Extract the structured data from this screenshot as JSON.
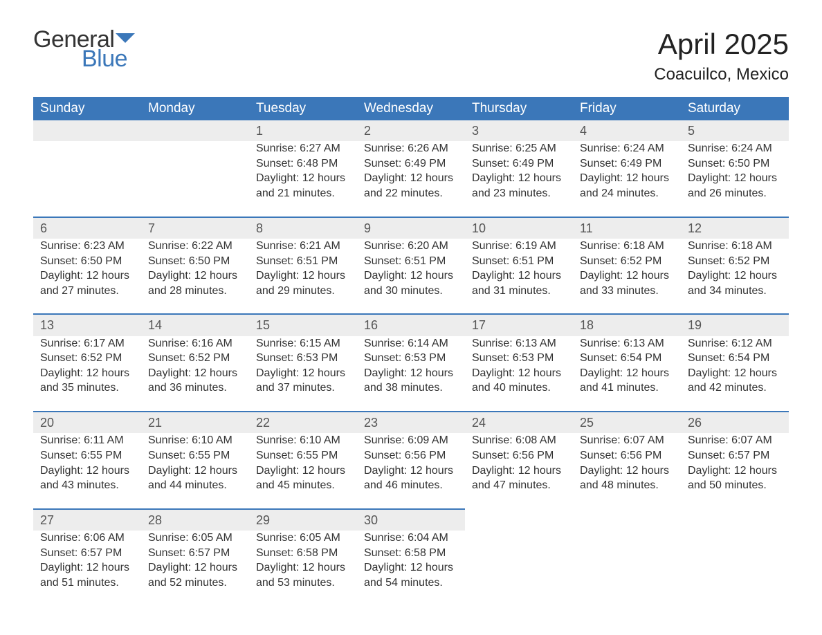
{
  "brand": {
    "word1": "General",
    "word2": "Blue",
    "text_color_1": "#333333",
    "text_color_2": "#3b77b9",
    "flag_color": "#3b77b9"
  },
  "title": {
    "month": "April 2025",
    "location": "Coacuilco, Mexico"
  },
  "colors": {
    "header_bg": "#3b77b9",
    "header_text": "#ffffff",
    "daynum_bg": "#ededed",
    "daynum_border": "#3b77b9",
    "body_bg": "#ffffff",
    "text": "#333333"
  },
  "day_headers": [
    "Sunday",
    "Monday",
    "Tuesday",
    "Wednesday",
    "Thursday",
    "Friday",
    "Saturday"
  ],
  "weeks": [
    [
      null,
      null,
      {
        "n": "1",
        "sunrise": "Sunrise: 6:27 AM",
        "sunset": "Sunset: 6:48 PM",
        "daylight1": "Daylight: 12 hours",
        "daylight2": "and 21 minutes."
      },
      {
        "n": "2",
        "sunrise": "Sunrise: 6:26 AM",
        "sunset": "Sunset: 6:49 PM",
        "daylight1": "Daylight: 12 hours",
        "daylight2": "and 22 minutes."
      },
      {
        "n": "3",
        "sunrise": "Sunrise: 6:25 AM",
        "sunset": "Sunset: 6:49 PM",
        "daylight1": "Daylight: 12 hours",
        "daylight2": "and 23 minutes."
      },
      {
        "n": "4",
        "sunrise": "Sunrise: 6:24 AM",
        "sunset": "Sunset: 6:49 PM",
        "daylight1": "Daylight: 12 hours",
        "daylight2": "and 24 minutes."
      },
      {
        "n": "5",
        "sunrise": "Sunrise: 6:24 AM",
        "sunset": "Sunset: 6:50 PM",
        "daylight1": "Daylight: 12 hours",
        "daylight2": "and 26 minutes."
      }
    ],
    [
      {
        "n": "6",
        "sunrise": "Sunrise: 6:23 AM",
        "sunset": "Sunset: 6:50 PM",
        "daylight1": "Daylight: 12 hours",
        "daylight2": "and 27 minutes."
      },
      {
        "n": "7",
        "sunrise": "Sunrise: 6:22 AM",
        "sunset": "Sunset: 6:50 PM",
        "daylight1": "Daylight: 12 hours",
        "daylight2": "and 28 minutes."
      },
      {
        "n": "8",
        "sunrise": "Sunrise: 6:21 AM",
        "sunset": "Sunset: 6:51 PM",
        "daylight1": "Daylight: 12 hours",
        "daylight2": "and 29 minutes."
      },
      {
        "n": "9",
        "sunrise": "Sunrise: 6:20 AM",
        "sunset": "Sunset: 6:51 PM",
        "daylight1": "Daylight: 12 hours",
        "daylight2": "and 30 minutes."
      },
      {
        "n": "10",
        "sunrise": "Sunrise: 6:19 AM",
        "sunset": "Sunset: 6:51 PM",
        "daylight1": "Daylight: 12 hours",
        "daylight2": "and 31 minutes."
      },
      {
        "n": "11",
        "sunrise": "Sunrise: 6:18 AM",
        "sunset": "Sunset: 6:52 PM",
        "daylight1": "Daylight: 12 hours",
        "daylight2": "and 33 minutes."
      },
      {
        "n": "12",
        "sunrise": "Sunrise: 6:18 AM",
        "sunset": "Sunset: 6:52 PM",
        "daylight1": "Daylight: 12 hours",
        "daylight2": "and 34 minutes."
      }
    ],
    [
      {
        "n": "13",
        "sunrise": "Sunrise: 6:17 AM",
        "sunset": "Sunset: 6:52 PM",
        "daylight1": "Daylight: 12 hours",
        "daylight2": "and 35 minutes."
      },
      {
        "n": "14",
        "sunrise": "Sunrise: 6:16 AM",
        "sunset": "Sunset: 6:52 PM",
        "daylight1": "Daylight: 12 hours",
        "daylight2": "and 36 minutes."
      },
      {
        "n": "15",
        "sunrise": "Sunrise: 6:15 AM",
        "sunset": "Sunset: 6:53 PM",
        "daylight1": "Daylight: 12 hours",
        "daylight2": "and 37 minutes."
      },
      {
        "n": "16",
        "sunrise": "Sunrise: 6:14 AM",
        "sunset": "Sunset: 6:53 PM",
        "daylight1": "Daylight: 12 hours",
        "daylight2": "and 38 minutes."
      },
      {
        "n": "17",
        "sunrise": "Sunrise: 6:13 AM",
        "sunset": "Sunset: 6:53 PM",
        "daylight1": "Daylight: 12 hours",
        "daylight2": "and 40 minutes."
      },
      {
        "n": "18",
        "sunrise": "Sunrise: 6:13 AM",
        "sunset": "Sunset: 6:54 PM",
        "daylight1": "Daylight: 12 hours",
        "daylight2": "and 41 minutes."
      },
      {
        "n": "19",
        "sunrise": "Sunrise: 6:12 AM",
        "sunset": "Sunset: 6:54 PM",
        "daylight1": "Daylight: 12 hours",
        "daylight2": "and 42 minutes."
      }
    ],
    [
      {
        "n": "20",
        "sunrise": "Sunrise: 6:11 AM",
        "sunset": "Sunset: 6:55 PM",
        "daylight1": "Daylight: 12 hours",
        "daylight2": "and 43 minutes."
      },
      {
        "n": "21",
        "sunrise": "Sunrise: 6:10 AM",
        "sunset": "Sunset: 6:55 PM",
        "daylight1": "Daylight: 12 hours",
        "daylight2": "and 44 minutes."
      },
      {
        "n": "22",
        "sunrise": "Sunrise: 6:10 AM",
        "sunset": "Sunset: 6:55 PM",
        "daylight1": "Daylight: 12 hours",
        "daylight2": "and 45 minutes."
      },
      {
        "n": "23",
        "sunrise": "Sunrise: 6:09 AM",
        "sunset": "Sunset: 6:56 PM",
        "daylight1": "Daylight: 12 hours",
        "daylight2": "and 46 minutes."
      },
      {
        "n": "24",
        "sunrise": "Sunrise: 6:08 AM",
        "sunset": "Sunset: 6:56 PM",
        "daylight1": "Daylight: 12 hours",
        "daylight2": "and 47 minutes."
      },
      {
        "n": "25",
        "sunrise": "Sunrise: 6:07 AM",
        "sunset": "Sunset: 6:56 PM",
        "daylight1": "Daylight: 12 hours",
        "daylight2": "and 48 minutes."
      },
      {
        "n": "26",
        "sunrise": "Sunrise: 6:07 AM",
        "sunset": "Sunset: 6:57 PM",
        "daylight1": "Daylight: 12 hours",
        "daylight2": "and 50 minutes."
      }
    ],
    [
      {
        "n": "27",
        "sunrise": "Sunrise: 6:06 AM",
        "sunset": "Sunset: 6:57 PM",
        "daylight1": "Daylight: 12 hours",
        "daylight2": "and 51 minutes."
      },
      {
        "n": "28",
        "sunrise": "Sunrise: 6:05 AM",
        "sunset": "Sunset: 6:57 PM",
        "daylight1": "Daylight: 12 hours",
        "daylight2": "and 52 minutes."
      },
      {
        "n": "29",
        "sunrise": "Sunrise: 6:05 AM",
        "sunset": "Sunset: 6:58 PM",
        "daylight1": "Daylight: 12 hours",
        "daylight2": "and 53 minutes."
      },
      {
        "n": "30",
        "sunrise": "Sunrise: 6:04 AM",
        "sunset": "Sunset: 6:58 PM",
        "daylight1": "Daylight: 12 hours",
        "daylight2": "and 54 minutes."
      },
      null,
      null,
      null
    ]
  ]
}
